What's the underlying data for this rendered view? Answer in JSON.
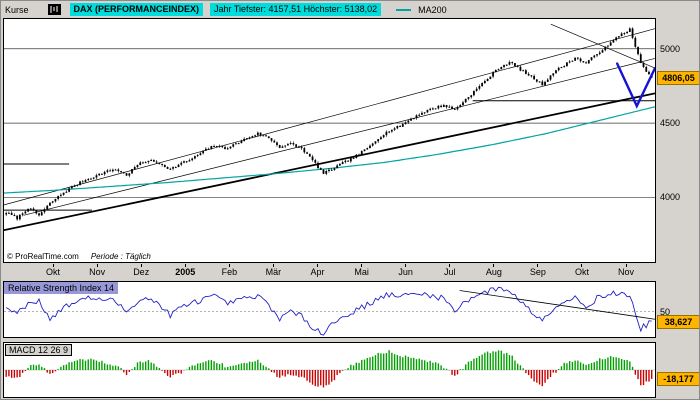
{
  "header": {
    "kurse_label": "Kurse",
    "instrument": "DAX (PERFORMANCEINDEX)",
    "year_stats": "Jahr Tiefster: 4157,51 Höchster: 5138,02",
    "ma_label": "MA200"
  },
  "footer": {
    "copyright": "© ProRealTime.com",
    "period": "Periode : Täglich"
  },
  "time_axis": {
    "labels": [
      "Okt",
      "Nov",
      "Dez",
      "2005",
      "Feb",
      "Mär",
      "Apr",
      "Mai",
      "Jun",
      "Jul",
      "Aug",
      "Sep",
      "Okt",
      "Nov"
    ]
  },
  "price_axis": {
    "tick_labels": [
      "5000",
      "4500",
      "4000"
    ],
    "last_price_label": "4806,05"
  },
  "rsi": {
    "title": "Relative Strength Index 14",
    "axis_label": "50",
    "last_value_label": "38,627"
  },
  "macd": {
    "title": "MACD 12 26 9",
    "last_value_label": "-18,177"
  },
  "colors": {
    "window_bg": "#d6d3ce",
    "accent_cyan": "#00dcdc",
    "badge_yellow": "#ffb400",
    "rsi_title_bg": "#9898d8",
    "candle": "#000000",
    "ma200": "#00a4a4",
    "rsi_line": "#2222c8",
    "macd_pos": "#00a000",
    "macd_neg": "#c80000",
    "drawing_blue": "#1414d2"
  },
  "chart_data": [
    {
      "type": "candlestick",
      "name": "DAX (PERFORMANCEINDEX), Täglich",
      "ylim": [
        3640,
        5200
      ],
      "gridlines": [
        5000,
        4500,
        4000
      ],
      "x_months": [
        "Okt",
        "Nov",
        "Dez",
        "2005",
        "Feb",
        "Mär",
        "Apr",
        "Mai",
        "Jun",
        "Jul",
        "Aug",
        "Sep",
        "Okt",
        "Nov"
      ],
      "year_low": 4157.51,
      "year_high": 5138.02,
      "last_price": 4806.05,
      "closes_weekly": [
        3900,
        3860,
        3930,
        3880,
        3960,
        4020,
        4070,
        4110,
        4140,
        4170,
        4190,
        4150,
        4220,
        4250,
        4230,
        4190,
        4230,
        4260,
        4310,
        4350,
        4330,
        4360,
        4400,
        4430,
        4400,
        4340,
        4360,
        4330,
        4250,
        4160,
        4200,
        4240,
        4280,
        4330,
        4400,
        4450,
        4480,
        4530,
        4570,
        4600,
        4620,
        4590,
        4660,
        4730,
        4800,
        4870,
        4910,
        4860,
        4810,
        4760,
        4840,
        4890,
        4940,
        4900,
        4970,
        5020,
        5090,
        5130,
        4900,
        4806
      ],
      "ma200": [
        4030,
        4050,
        4075,
        4100,
        4130,
        4160,
        4195,
        4235,
        4290,
        4355,
        4430,
        4520,
        4610
      ],
      "trendlines": [
        {
          "x1": 0.0,
          "p1": 3780,
          "x2": 1.0,
          "p2": 4700,
          "w": 1.8
        },
        {
          "x1": 0.0,
          "p1": 3950,
          "x2": 1.0,
          "p2": 5135,
          "w": 0.7
        },
        {
          "x1": 0.03,
          "p1": 3880,
          "x2": 1.0,
          "p2": 4935,
          "w": 0.7
        },
        {
          "x1": 0.84,
          "p1": 5165,
          "x2": 1.0,
          "p2": 4870,
          "w": 0.7
        }
      ],
      "hlines": [
        {
          "price": 4650,
          "x1": 0.72,
          "x2": 1.0
        },
        {
          "price": 4225,
          "x1": 0.0,
          "x2": 0.1
        },
        {
          "price": 3915,
          "x1": 0.0,
          "x2": 0.135
        }
      ],
      "blue_drawing": {
        "points": [
          {
            "x": 0.942,
            "p": 4900
          },
          {
            "x": 0.972,
            "p": 4615
          },
          {
            "x": 1.0,
            "p": 4870
          }
        ],
        "w": 2.4
      }
    },
    {
      "type": "line",
      "name": "Relative Strength Index 14",
      "ylim": [
        20,
        85
      ],
      "midline": 50,
      "last_value": 38.627,
      "values": [
        55,
        48,
        60,
        63,
        42,
        52,
        60,
        65,
        66,
        64,
        62,
        50,
        63,
        66,
        58,
        46,
        55,
        60,
        65,
        68,
        60,
        62,
        66,
        68,
        58,
        42,
        50,
        44,
        32,
        25,
        38,
        45,
        52,
        58,
        66,
        70,
        68,
        70,
        71,
        69,
        65,
        52,
        62,
        70,
        74,
        77,
        76,
        62,
        50,
        40,
        55,
        62,
        67,
        56,
        66,
        70,
        72,
        68,
        30,
        38.627
      ],
      "trendline": {
        "x1": 0.7,
        "v1": 75,
        "x2": 1.0,
        "v2": 41
      }
    },
    {
      "type": "bar",
      "name": "MACD 12 26 9",
      "ylim": [
        -55,
        55
      ],
      "last_value": -18.177,
      "values": [
        -12,
        -18,
        5,
        14,
        -10,
        6,
        16,
        22,
        20,
        15,
        10,
        -8,
        14,
        18,
        5,
        -14,
        -6,
        8,
        16,
        20,
        8,
        10,
        16,
        18,
        2,
        -16,
        -8,
        -14,
        -28,
        -36,
        -18,
        2,
        14,
        24,
        34,
        38,
        30,
        26,
        22,
        16,
        6,
        -12,
        10,
        26,
        36,
        40,
        32,
        10,
        -18,
        -30,
        -8,
        12,
        22,
        8,
        20,
        26,
        24,
        18,
        -34,
        -18.177
      ]
    }
  ]
}
